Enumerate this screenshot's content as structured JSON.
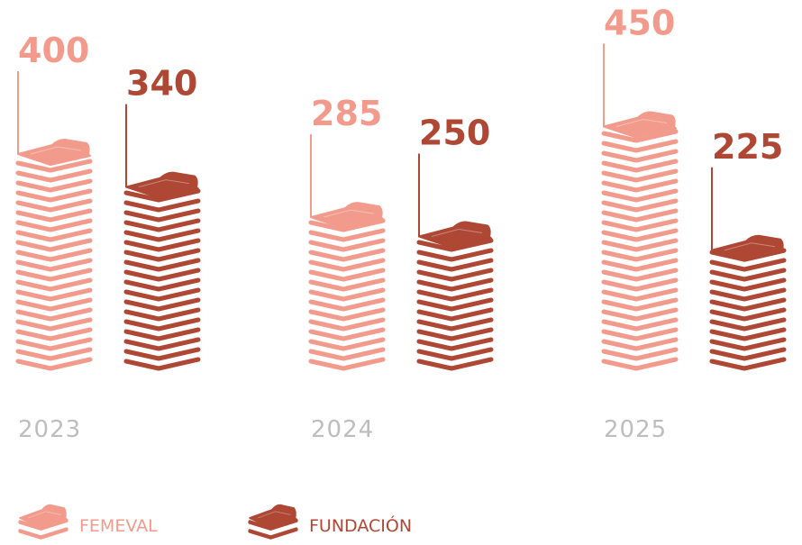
{
  "chart_data": {
    "type": "bar",
    "categories": [
      "2023",
      "2024",
      "2025"
    ],
    "series": [
      {
        "name": "FEMEVAL",
        "color": "#f29b8c",
        "values": [
          400,
          285,
          450
        ]
      },
      {
        "name": "FUNDACIÓN",
        "color": "#ae4734",
        "values": [
          340,
          250,
          225
        ]
      }
    ]
  }
}
